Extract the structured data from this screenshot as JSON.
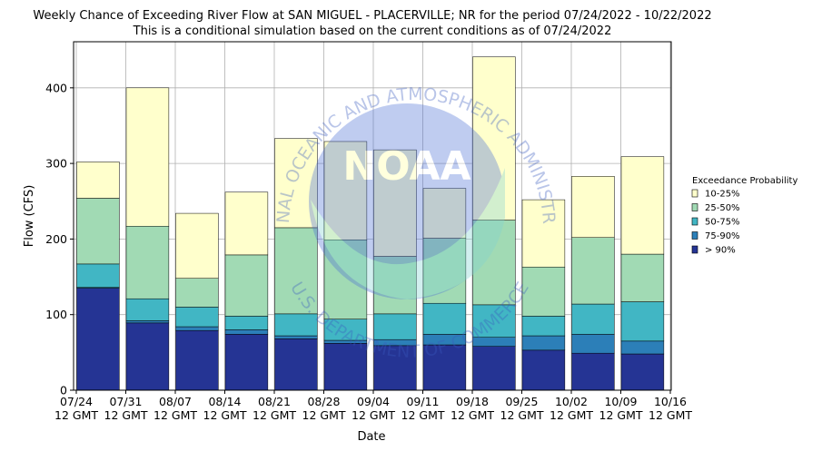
{
  "chart_data": {
    "type": "stacked-bar",
    "title": "Weekly Chance of Exceeding River Flow at SAN MIGUEL - PLACERVILLE; NR for the period 07/24/2022 - 10/22/2022",
    "subtitle": "This is a conditional simulation based on the current conditions as of 07/24/2022",
    "x_label": "Date",
    "y_label": "Flow (CFS)",
    "xticks": [
      "07/24",
      "07/31",
      "08/07",
      "08/14",
      "08/21",
      "08/28",
      "09/04",
      "09/11",
      "09/18",
      "09/25",
      "10/02",
      "10/09",
      "10/16"
    ],
    "xtick_time": "12 GMT",
    "ylim": [
      0,
      461
    ],
    "yticks": [
      0,
      100,
      200,
      300,
      400
    ],
    "grid": true,
    "legend_title": "Exceedance Probability",
    "legend": "right",
    "series": [
      {
        "name": "10-25%",
        "color": "#ffffcc",
        "values": [
          48,
          183,
          86,
          83,
          118,
          130,
          141,
          66,
          216,
          89,
          81,
          129
        ]
      },
      {
        "name": "25-50%",
        "color": "#a1dab4",
        "values": [
          87,
          96,
          38,
          81,
          114,
          105,
          76,
          86,
          112,
          65,
          88,
          63
        ]
      },
      {
        "name": "50-75%",
        "color": "#41b6c4",
        "values": [
          31,
          29,
          26,
          18,
          29,
          28,
          34,
          41,
          43,
          26,
          40,
          52
        ]
      },
      {
        "name": "75-90%",
        "color": "#2c7fb8",
        "values": [
          1,
          3,
          5,
          6,
          4,
          4,
          8,
          14,
          12,
          19,
          25,
          17
        ]
      },
      {
        "name": "> 90%",
        "color": "#253494",
        "values": [
          135,
          89,
          79,
          74,
          68,
          62,
          59,
          60,
          58,
          53,
          49,
          48
        ]
      }
    ],
    "watermark": {
      "logo": "NOAA",
      "ring_top": "NATIONAL OCEANIC AND ATMOSPHERIC ADMINISTRATION",
      "ring_bottom": "U.S. DEPARTMENT OF COMMERCE"
    }
  }
}
